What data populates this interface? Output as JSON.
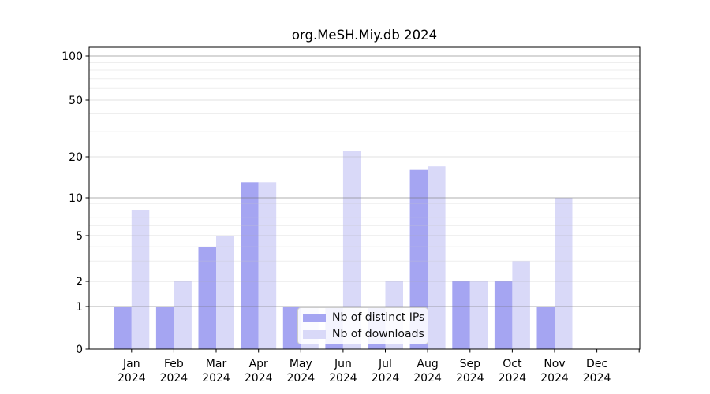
{
  "chart_data": {
    "type": "bar",
    "title": "org.MeSH.Miy.db 2024",
    "categories": [
      "Jan",
      "Feb",
      "Mar",
      "Apr",
      "May",
      "Jun",
      "Jul",
      "Aug",
      "Sep",
      "Oct",
      "Nov",
      "Dec"
    ],
    "category_year": "2024",
    "series": [
      {
        "name": "Nb of distinct IPs",
        "color": "#a5a5f2",
        "values": [
          1,
          1,
          4,
          13,
          1,
          1,
          1,
          16,
          2,
          2,
          1,
          0
        ]
      },
      {
        "name": "Nb of downloads",
        "color": "#d9d9f8",
        "values": [
          8,
          2,
          5,
          13,
          1,
          22,
          2,
          17,
          2,
          3,
          10,
          0
        ]
      }
    ],
    "y_ticks": [
      0,
      1,
      2,
      5,
      10,
      20,
      50,
      100
    ],
    "y_minor_gridlines": [
      3,
      4,
      6,
      7,
      8,
      9,
      30,
      40,
      60,
      70,
      80,
      90
    ],
    "ylim": [
      0,
      100
    ],
    "scale": "log-like with linear segment near zero",
    "grid": true,
    "legend_position": "lower center"
  }
}
